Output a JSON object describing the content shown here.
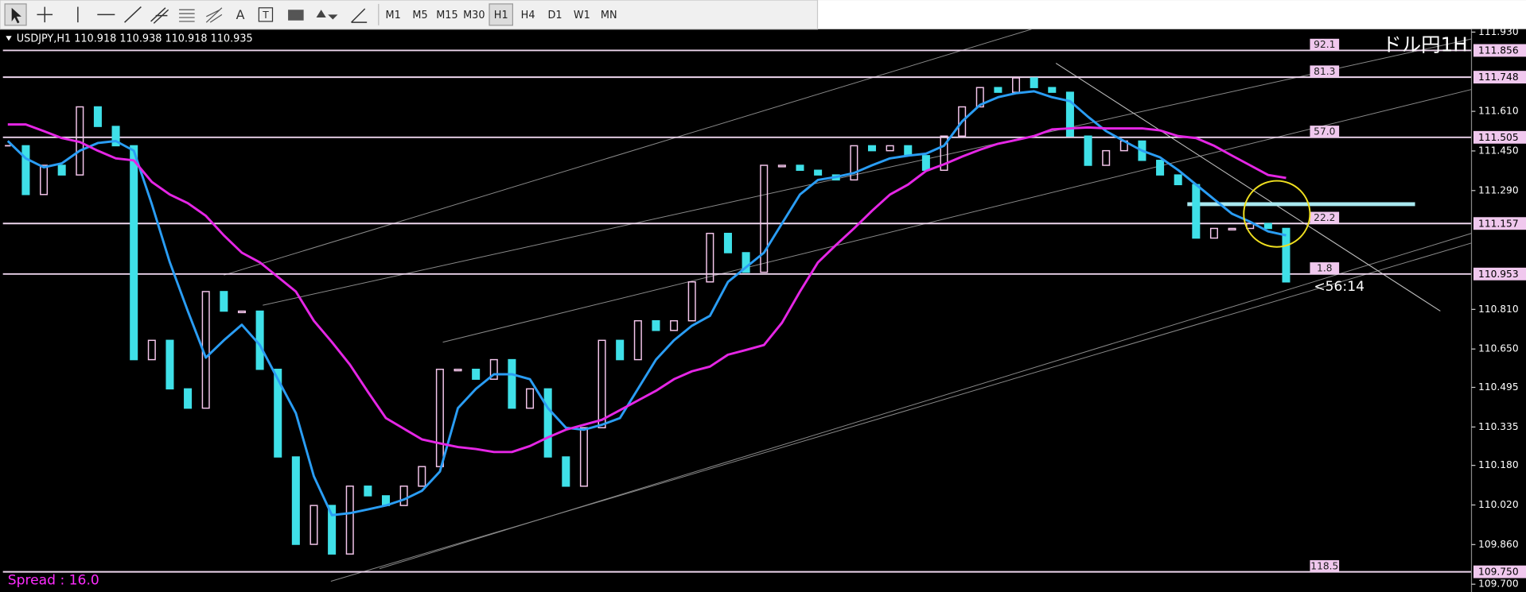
{
  "toolbar": {
    "timeframes": [
      "M1",
      "M5",
      "M15",
      "M30",
      "H1",
      "H4",
      "D1",
      "W1",
      "MN"
    ],
    "active_timeframe": "H1"
  },
  "chart_data": {
    "type": "candlestick",
    "title": "ドル円1H",
    "symbol_info": "USDJPY,H1  110.918 110.938 110.918 110.935",
    "spread": "Spread : 16.0",
    "timer": "<56:14",
    "ylim": [
      109.7,
      111.93
    ],
    "yticks": [
      {
        "value": 111.93,
        "label": "111.930"
      },
      {
        "value": 111.61,
        "label": "111.610"
      },
      {
        "value": 111.45,
        "label": "111.450"
      },
      {
        "value": 111.29,
        "label": "111.290"
      },
      {
        "value": 110.81,
        "label": "110.810"
      },
      {
        "value": 110.65,
        "label": "110.650"
      },
      110.495,
      110.335,
      {
        "value": 110.18,
        "label": "110.180"
      },
      {
        "value": 110.02,
        "label": "110.020"
      },
      {
        "value": 109.86,
        "label": "109.860"
      },
      {
        "value": 109.7,
        "label": "109.700"
      }
    ],
    "grid": false,
    "levels": [
      {
        "price": 111.856,
        "fib": "92.1"
      },
      {
        "price": 111.748,
        "fib": "81.3"
      },
      {
        "price": 111.505,
        "fib": "57.0"
      },
      {
        "price": 111.157,
        "fib": "22.2"
      },
      {
        "price": 110.953,
        "fib": "1.8"
      },
      {
        "price": {
          "value": 109.75,
          "label": "109.750"
        },
        "fib": "118.5"
      }
    ],
    "level_color": "#eed6ee",
    "up_color": "#f5c6ec",
    "down_color": "#3fe0e8",
    "close": [
      111.471,
      111.274,
      111.392,
      111.353,
      111.628,
      111.549,
      111.471,
      110.607,
      110.685,
      110.489,
      110.411,
      110.882,
      110.803,
      110.803,
      110.568,
      110.214,
      109.861,
      110.018,
      109.822,
      110.096,
      110.057,
      110.018,
      110.096,
      110.175,
      110.568,
      110.568,
      110.528,
      110.607,
      110.411,
      110.489,
      110.214,
      110.096,
      110.332,
      110.685,
      110.607,
      110.764,
      110.725,
      110.764,
      110.921,
      111.117,
      111.039,
      110.96,
      111.392,
      111.392,
      111.372,
      111.353,
      111.333,
      111.471,
      111.451,
      111.471,
      111.431,
      111.372,
      111.51,
      111.628,
      111.706,
      111.687,
      111.745,
      111.706,
      111.687,
      111.51,
      111.392,
      111.451,
      111.49,
      111.412,
      111.353,
      111.314,
      111.098,
      111.137,
      111.137,
      111.157,
      111.137,
      110.921
    ],
    "series": [
      {
        "color": "#2a9df4",
        "values": [
          111.49,
          111.42,
          111.384,
          111.4,
          111.451,
          111.482,
          111.49,
          111.451,
          111.235,
          111.0,
          110.803,
          110.615,
          110.685,
          110.748,
          110.666,
          110.528,
          110.391,
          110.136,
          109.979,
          109.987,
          110.002,
          110.018,
          110.042,
          110.077,
          110.155,
          110.411,
          110.489,
          110.548,
          110.548,
          110.528,
          110.411,
          110.332,
          110.324,
          110.344,
          110.371,
          110.489,
          110.607,
          110.685,
          110.744,
          110.784,
          110.921,
          110.98,
          111.039,
          111.157,
          111.274,
          111.333,
          111.345,
          111.361,
          111.392,
          111.42,
          111.431,
          111.439,
          111.471,
          111.569,
          111.636,
          111.667,
          111.683,
          111.691,
          111.667,
          111.651,
          111.588,
          111.53,
          111.49,
          111.451,
          111.424,
          111.373,
          111.314,
          111.255,
          111.196,
          111.164,
          111.125,
          111.109
        ]
      },
      {
        "color": "#e526e5",
        "values": [
          111.557,
          111.557,
          111.53,
          111.502,
          111.486,
          111.451,
          111.42,
          111.412,
          111.325,
          111.274,
          111.239,
          111.188,
          111.109,
          111.039,
          111.0,
          110.941,
          110.882,
          110.764,
          110.678,
          110.587,
          110.477,
          110.371,
          110.328,
          110.285,
          110.269,
          110.254,
          110.246,
          110.234,
          110.234,
          110.258,
          110.293,
          110.324,
          110.344,
          110.364,
          110.403,
          110.442,
          110.481,
          110.528,
          110.56,
          110.579,
          110.627,
          110.646,
          110.666,
          110.756,
          110.882,
          111.0,
          111.07,
          111.137,
          111.208,
          111.274,
          111.314,
          111.369,
          111.396,
          111.427,
          111.455,
          111.479,
          111.494,
          111.51,
          111.537,
          111.541,
          111.545,
          111.541,
          111.541,
          111.541,
          111.533,
          111.51,
          111.502,
          111.471,
          111.431,
          111.392,
          111.353,
          111.341
        ]
      }
    ]
  }
}
